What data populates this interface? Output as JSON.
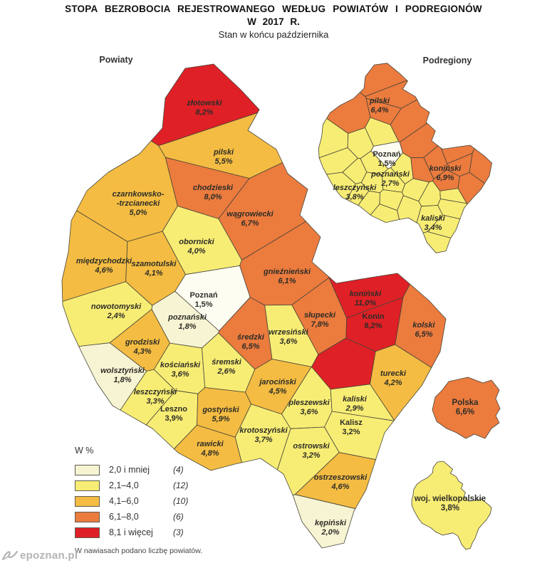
{
  "header": {
    "title_line1": "STOPA BEZROBOCIA REJESTROWANEGO WEDŁUG POWIATÓW I PODREGIONÓW",
    "title_line2": "W 2017 R.",
    "subtitle": "Stan w końcu października"
  },
  "colors": {
    "border": "#45453a",
    "label": "#2d2d28",
    "class1": "#f7f4d3",
    "class2": "#f8ed74",
    "class3": "#f4bc42",
    "class4": "#ec7b3e",
    "class5": "#df2026",
    "poznan_city_fill": "#fdfdf2",
    "watermark": "#b3b3b3"
  },
  "maps": {
    "powiaty": {
      "title": "Powiaty",
      "regions": [
        {
          "name": "złotowski",
          "value": "8,2%",
          "site": [
            287,
            140
          ],
          "label": [
            287,
            144
          ],
          "sub": "pilski"
        },
        {
          "name": "pilski",
          "value": "5,5%",
          "site": [
            313,
            218
          ],
          "label": [
            314,
            213
          ],
          "sub": "pilski"
        },
        {
          "name": "czarnkowsko--trzcianecki",
          "lines": [
            "czarnkowsko-",
            "-trzcianecki"
          ],
          "value": "5,0%",
          "site": [
            190,
            290
          ],
          "label": [
            194,
            272
          ],
          "sub": "pilski"
        },
        {
          "name": "chodzieski",
          "value": "8,0%",
          "site": [
            302,
            262
          ],
          "label": [
            299,
            263
          ],
          "sub": "pilski"
        },
        {
          "name": "wągrowiecki",
          "value": "6,7%",
          "site": [
            352,
            300
          ],
          "label": [
            351,
            300
          ],
          "sub": "pilski"
        },
        {
          "name": "obornicki",
          "value": "4,0%",
          "site": [
            277,
            342
          ],
          "label": [
            276,
            339
          ],
          "sub": "poznański"
        },
        {
          "name": "międzychodzki",
          "value": "4,6%",
          "site": [
            140,
            372
          ],
          "label": [
            146,
            366
          ],
          "sub": "leszczyński"
        },
        {
          "name": "szamotulski",
          "value": "4,1%",
          "site": [
            215,
            375
          ],
          "label": [
            216,
            370
          ],
          "sub": "poznański"
        },
        {
          "name": "gnieźnieński",
          "value": "6,1%",
          "site": [
            403,
            385
          ],
          "label": [
            403,
            381
          ],
          "sub": "koniński"
        },
        {
          "name": "Poznań",
          "value": "1,5%",
          "site": [
            290,
            422
          ],
          "label": [
            286,
            414
          ],
          "city": true,
          "fill": "#fdfdf2",
          "sub": "Poznań"
        },
        {
          "name": "poznański",
          "value": "1,8%",
          "site": [
            263,
            452
          ],
          "label": [
            263,
            445
          ],
          "sub": "poznański"
        },
        {
          "name": "nowotomyski",
          "value": "2,4%",
          "site": [
            160,
            436
          ],
          "label": [
            163,
            430
          ],
          "sub": "leszczyński"
        },
        {
          "name": "koniński",
          "value": "11,0%",
          "sites": [
            [
              513,
              420
            ],
            [
              492,
              520
            ]
          ],
          "label": [
            513,
            412
          ],
          "sub": "koniński"
        },
        {
          "name": "Konin",
          "value": "8,2%",
          "site": [
            524,
            450
          ],
          "label": [
            524,
            444
          ],
          "city": true,
          "sub": "koniński"
        },
        {
          "name": "słupecki",
          "value": "7,8%",
          "site": [
            449,
            448
          ],
          "label": [
            449,
            442
          ],
          "sub": "koniński"
        },
        {
          "name": "kolski",
          "value": "6,5%",
          "site": [
            595,
            462
          ],
          "label": [
            595,
            456
          ],
          "sub": "koniński"
        },
        {
          "name": "wrzesiński",
          "value": "3,6%",
          "site": [
            404,
            472
          ],
          "label": [
            405,
            466
          ],
          "sub": "koniński"
        },
        {
          "name": "średzki",
          "value": "6,5%",
          "site": [
            352,
            479
          ],
          "label": [
            352,
            473
          ],
          "sub": "poznański"
        },
        {
          "name": "grodziski",
          "value": "4,3%",
          "site": [
            200,
            486
          ],
          "label": [
            200,
            480
          ],
          "sub": "leszczyński"
        },
        {
          "name": "wolsztyński",
          "value": "1,8%",
          "site": [
            170,
            525
          ],
          "label": [
            172,
            520
          ],
          "sub": "leszczyński"
        },
        {
          "name": "kościański",
          "value": "3,6%",
          "site": [
            253,
            518
          ],
          "label": [
            253,
            512
          ],
          "sub": "leszczyński"
        },
        {
          "name": "śremski",
          "value": "2,6%",
          "site": [
            318,
            513
          ],
          "label": [
            318,
            508
          ],
          "sub": "poznański"
        },
        {
          "name": "jarociński",
          "value": "4,5%",
          "site": [
            390,
            543
          ],
          "label": [
            390,
            536
          ],
          "sub": "kaliski"
        },
        {
          "name": "turecki",
          "value": "4,2%",
          "site": [
            552,
            530
          ],
          "label": [
            552,
            524
          ],
          "sub": "koniński"
        },
        {
          "name": "leszczyński",
          "value": "3,3%",
          "site": [
            216,
            556
          ],
          "label": [
            218,
            550
          ],
          "sub": "leszczyński"
        },
        {
          "name": "Leszno",
          "value": "3,9%",
          "site": [
            244,
            580
          ],
          "label": [
            244,
            574
          ],
          "city": true,
          "sub": "leszczyński"
        },
        {
          "name": "gostyński",
          "value": "5,9%",
          "site": [
            310,
            582
          ],
          "label": [
            310,
            575
          ],
          "sub": "leszczyński"
        },
        {
          "name": "pleszewski",
          "value": "3,6%",
          "site": [
            433,
            570
          ],
          "label": [
            434,
            565
          ],
          "sub": "kaliski"
        },
        {
          "name": "krotoszyński",
          "value": "3,7%",
          "site": [
            368,
            610
          ],
          "label": [
            370,
            604
          ],
          "sub": "kaliski"
        },
        {
          "name": "rawicki",
          "value": "4,8%",
          "site": [
            295,
            629
          ],
          "label": [
            295,
            623
          ],
          "sub": "leszczyński"
        },
        {
          "name": "kaliski",
          "value": "2,9%",
          "site": [
            498,
            566
          ],
          "label": [
            498,
            560
          ],
          "sub": "kaliski"
        },
        {
          "name": "Kalisz",
          "value": "3,2%",
          "site": [
            493,
            599
          ],
          "label": [
            493,
            593
          ],
          "city": true,
          "sub": "kaliski"
        },
        {
          "name": "ostrowski",
          "value": "3,2%",
          "site": [
            436,
            632
          ],
          "label": [
            437,
            626
          ],
          "sub": "kaliski"
        },
        {
          "name": "ostrzeszowski",
          "value": "4,6%",
          "site": [
            478,
            676
          ],
          "label": [
            478,
            670
          ],
          "sub": "kaliski"
        },
        {
          "name": "kępiński",
          "value": "2,0%",
          "site": [
            463,
            740
          ],
          "label": [
            464,
            734
          ],
          "sub": "kaliski"
        }
      ]
    },
    "podregiony": {
      "title": "Podregiony",
      "regions": [
        {
          "name": "pilski",
          "value": "6,4%",
          "label": [
            533,
            141
          ]
        },
        {
          "name": "poznański",
          "value": "2,7%",
          "label": [
            548,
            244
          ]
        },
        {
          "name": "Poznań",
          "value": "1,5%",
          "label": [
            543,
            216
          ],
          "city": true,
          "fill": "#fdfdf2"
        },
        {
          "name": "koniński",
          "value": "6,9%",
          "label": [
            625,
            236
          ]
        },
        {
          "name": "leszczyński",
          "value": "3,8%",
          "label": [
            498,
            263
          ]
        },
        {
          "name": "kaliski",
          "value": "3,4%",
          "label": [
            608,
            306
          ]
        }
      ]
    },
    "extras": [
      {
        "name": "Polska",
        "value": "6,6%",
        "label": [
          653,
          565
        ],
        "shape": "poland"
      },
      {
        "name": "woj. wielkopolskie",
        "value": "3,8%",
        "label": [
          632,
          700
        ],
        "shape": "wielkopolska"
      }
    ]
  },
  "legend": {
    "title": "W %",
    "classes": [
      {
        "label": "2,0 i mniej",
        "count": "(4)",
        "color": "#f7f4d3",
        "max": 2.0
      },
      {
        "label": "2,1–4,0",
        "count": "(12)",
        "color": "#f8ed74",
        "max": 4.0
      },
      {
        "label": "4,1–6,0",
        "count": "(10)",
        "color": "#f4bc42",
        "max": 6.0
      },
      {
        "label": "6,1–8,0",
        "count": "(6)",
        "color": "#ec7b3e",
        "max": 8.0
      },
      {
        "label": "8,1 i więcej",
        "count": "(3)",
        "color": "#df2026",
        "max": null
      }
    ],
    "footnote": "W nawiasach podano liczbę powiatów."
  },
  "watermark": {
    "text": "epoznan.pl"
  }
}
